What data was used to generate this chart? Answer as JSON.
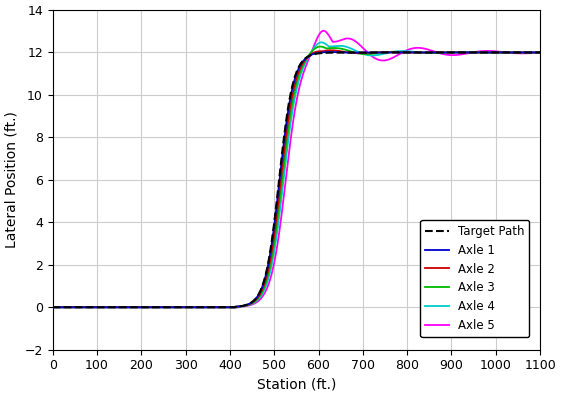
{
  "title": "",
  "xlabel": "Station (ft.)",
  "ylabel": "Lateral Position (ft.)",
  "xlim": [
    0,
    1100
  ],
  "ylim": [
    -2,
    14
  ],
  "xticks": [
    0,
    100,
    200,
    300,
    400,
    500,
    600,
    700,
    800,
    900,
    1000,
    1100
  ],
  "yticks": [
    -2,
    0,
    2,
    4,
    6,
    8,
    10,
    12,
    14
  ],
  "target_color": "#000000",
  "axle_colors": [
    "#0000CC",
    "#CC0000",
    "#00BB00",
    "#00CCCC",
    "#FF00FF"
  ],
  "axle_labels": [
    "Axle 1",
    "Axle 2",
    "Axle 3",
    "Axle 4",
    "Axle 5"
  ],
  "target_label": "Target Path",
  "background_color": "#ffffff",
  "grid_color": "#cccccc",
  "figsize": [
    5.61,
    3.97
  ],
  "dpi": 100
}
